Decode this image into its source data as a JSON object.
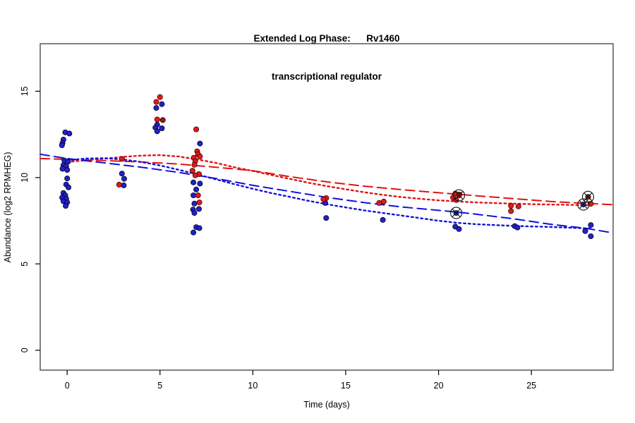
{
  "title": {
    "line1": "Extended Log Phase:      Rv1460",
    "line2": "transcriptional regulator"
  },
  "chart_data": {
    "type": "scatter",
    "xlabel": "Time  (days)",
    "ylabel": "Abundance  (log2 RPMHEG)",
    "xlim": [
      -1.45,
      29.4
    ],
    "ylim": [
      -1.15,
      17.75
    ],
    "grid": false,
    "legend": "none",
    "x_axis": {
      "ticks": [
        0,
        5,
        10,
        15,
        20,
        25
      ]
    },
    "y_axis": {
      "ticks": [
        0,
        5,
        10,
        15
      ]
    },
    "colors": {
      "red_point_fill": "#e31a1a",
      "red_point_stroke": "#3a0000",
      "darkred_point_fill": "#a31212",
      "blue_point_fill": "#2121cc",
      "blue_point_stroke": "#00001a",
      "red_line": "#e41111",
      "blue_line": "#1111dd",
      "box": "#4d4d4d",
      "highlight_ring": "#111111"
    },
    "series": [
      {
        "name": "blue-points",
        "fill": "#2121cc",
        "stroke": "#00001a",
        "points": [
          [
            -0.1,
            12.62
          ],
          [
            0.12,
            12.55
          ],
          [
            -0.2,
            12.2
          ],
          [
            -0.25,
            12.0
          ],
          [
            -0.28,
            11.87
          ],
          [
            -0.15,
            10.99
          ],
          [
            0.05,
            10.92
          ],
          [
            -0.2,
            10.72
          ],
          [
            -0.05,
            10.65
          ],
          [
            -0.25,
            10.51
          ],
          [
            0.0,
            10.44
          ],
          [
            0.0,
            9.95
          ],
          [
            -0.05,
            9.6
          ],
          [
            0.07,
            9.43
          ],
          [
            -0.2,
            9.11
          ],
          [
            -0.1,
            8.97
          ],
          [
            -0.27,
            8.84
          ],
          [
            -0.05,
            8.77
          ],
          [
            -0.2,
            8.63
          ],
          [
            0.0,
            8.56
          ],
          [
            -0.08,
            8.36
          ],
          [
            2.95,
            10.23
          ],
          [
            3.07,
            9.93
          ],
          [
            3.05,
            9.55
          ],
          [
            5.1,
            14.25
          ],
          [
            4.8,
            14.03
          ],
          [
            4.85,
            13.06
          ],
          [
            4.75,
            12.89
          ],
          [
            5.1,
            12.85
          ],
          [
            4.85,
            12.68
          ],
          [
            7.15,
            11.97
          ],
          [
            6.8,
            9.72
          ],
          [
            7.15,
            9.65
          ],
          [
            6.95,
            9.31
          ],
          [
            6.8,
            8.97
          ],
          [
            6.85,
            8.49
          ],
          [
            7.1,
            8.18
          ],
          [
            6.78,
            8.15
          ],
          [
            6.85,
            7.95
          ],
          [
            6.95,
            7.13
          ],
          [
            7.12,
            7.07
          ],
          [
            6.8,
            6.82
          ],
          [
            13.9,
            8.53
          ],
          [
            13.95,
            7.66
          ],
          [
            17.0,
            7.55
          ],
          [
            20.9,
            7.16
          ],
          [
            21.1,
            7.02
          ],
          [
            24.1,
            7.19
          ],
          [
            24.25,
            7.11
          ],
          [
            28.2,
            7.25
          ],
          [
            27.9,
            6.9
          ],
          [
            28.2,
            6.6
          ]
        ]
      },
      {
        "name": "red-points",
        "fill": "#e31a1a",
        "stroke": "#3a0000",
        "points": [
          [
            2.95,
            11.08
          ],
          [
            2.8,
            9.59
          ],
          [
            5.0,
            14.66
          ],
          [
            4.8,
            14.38
          ],
          [
            4.85,
            13.36
          ],
          [
            6.95,
            12.79
          ],
          [
            7.0,
            11.52
          ],
          [
            7.05,
            11.35
          ],
          [
            7.15,
            11.22
          ],
          [
            6.82,
            11.15
          ],
          [
            6.9,
            10.95
          ],
          [
            6.85,
            10.74
          ],
          [
            6.75,
            10.4
          ],
          [
            7.1,
            10.2
          ],
          [
            6.9,
            10.13
          ],
          [
            7.05,
            8.97
          ],
          [
            7.12,
            8.56
          ],
          [
            13.95,
            8.81
          ],
          [
            13.8,
            8.75
          ],
          [
            16.8,
            8.53
          ],
          [
            17.05,
            8.61
          ],
          [
            20.9,
            9.07
          ],
          [
            21.12,
            9.02
          ],
          [
            20.78,
            8.84
          ],
          [
            20.95,
            8.7
          ],
          [
            23.9,
            8.37
          ],
          [
            24.3,
            8.33
          ],
          [
            23.9,
            8.06
          ],
          [
            28.2,
            8.48
          ]
        ]
      },
      {
        "name": "darkred-points",
        "fill": "#a31212",
        "stroke": "#2a0000",
        "points": [
          [
            5.15,
            13.33
          ]
        ]
      }
    ],
    "highlighted_points": [
      {
        "day": 21.1,
        "value": 8.97,
        "fill": "#b01515"
      },
      {
        "day": 20.95,
        "value": 7.95,
        "fill": "#2222cc"
      },
      {
        "day": 28.05,
        "value": 8.88,
        "fill": "#8b1a1a"
      },
      {
        "day": 27.8,
        "value": 8.44,
        "fill": "#2a2ab0"
      }
    ],
    "trend_lines": [
      {
        "name": "red-loess-dotted",
        "color": "#e41111",
        "dash": "dotted",
        "points": [
          [
            0,
            10.9
          ],
          [
            1,
            11.0
          ],
          [
            2,
            11.1
          ],
          [
            3,
            11.2
          ],
          [
            4,
            11.27
          ],
          [
            5,
            11.3
          ],
          [
            6,
            11.22
          ],
          [
            7,
            11.05
          ],
          [
            8,
            10.85
          ],
          [
            9,
            10.6
          ],
          [
            10,
            10.38
          ],
          [
            11,
            10.15
          ],
          [
            12,
            9.92
          ],
          [
            13,
            9.7
          ],
          [
            14,
            9.5
          ],
          [
            15,
            9.32
          ],
          [
            16,
            9.15
          ],
          [
            17,
            9.0
          ],
          [
            18,
            8.87
          ],
          [
            19,
            8.77
          ],
          [
            20,
            8.68
          ],
          [
            21,
            8.62
          ],
          [
            22,
            8.56
          ],
          [
            23,
            8.52
          ],
          [
            24,
            8.49
          ],
          [
            25,
            8.46
          ],
          [
            26,
            8.44
          ],
          [
            27,
            8.42
          ],
          [
            28.2,
            8.4
          ]
        ]
      },
      {
        "name": "red-linear-longdash",
        "color": "#e41111",
        "dash": "longdash",
        "points": [
          [
            -1.45,
            11.1
          ],
          [
            0,
            11.05
          ],
          [
            2,
            10.98
          ],
          [
            4,
            10.9
          ],
          [
            6,
            10.78
          ],
          [
            8,
            10.6
          ],
          [
            10,
            10.4
          ],
          [
            12,
            10.05
          ],
          [
            14,
            9.75
          ],
          [
            16,
            9.5
          ],
          [
            18,
            9.3
          ],
          [
            20,
            9.12
          ],
          [
            22,
            8.95
          ],
          [
            24,
            8.78
          ],
          [
            26,
            8.62
          ],
          [
            28,
            8.5
          ],
          [
            29.35,
            8.43
          ]
        ]
      },
      {
        "name": "blue-loess-dotted",
        "color": "#1111dd",
        "dash": "dotted",
        "points": [
          [
            0,
            11.0
          ],
          [
            1,
            11.1
          ],
          [
            2,
            11.12
          ],
          [
            3,
            11.05
          ],
          [
            4,
            10.9
          ],
          [
            5,
            10.7
          ],
          [
            6,
            10.45
          ],
          [
            7,
            10.18
          ],
          [
            8,
            9.9
          ],
          [
            9,
            9.62
          ],
          [
            10,
            9.35
          ],
          [
            11,
            9.1
          ],
          [
            12,
            8.88
          ],
          [
            13,
            8.65
          ],
          [
            14,
            8.45
          ],
          [
            15,
            8.27
          ],
          [
            16,
            8.1
          ],
          [
            17,
            7.95
          ],
          [
            18,
            7.8
          ],
          [
            19,
            7.65
          ],
          [
            20,
            7.5
          ],
          [
            21,
            7.38
          ],
          [
            22,
            7.3
          ],
          [
            23,
            7.25
          ],
          [
            24,
            7.2
          ],
          [
            25,
            7.17
          ],
          [
            26,
            7.14
          ],
          [
            27,
            7.1
          ],
          [
            28.2,
            7.05
          ]
        ]
      },
      {
        "name": "blue-linear-longdash",
        "color": "#1111dd",
        "dash": "longdash",
        "points": [
          [
            -1.45,
            11.35
          ],
          [
            0,
            11.1
          ],
          [
            2,
            10.85
          ],
          [
            4,
            10.6
          ],
          [
            6,
            10.3
          ],
          [
            8,
            9.95
          ],
          [
            10,
            9.55
          ],
          [
            12,
            9.2
          ],
          [
            14,
            8.85
          ],
          [
            16,
            8.55
          ],
          [
            18,
            8.3
          ],
          [
            20,
            8.1
          ],
          [
            21,
            8.0
          ],
          [
            22,
            7.88
          ],
          [
            24,
            7.62
          ],
          [
            26,
            7.3
          ],
          [
            28,
            7.05
          ],
          [
            29.35,
            6.8
          ]
        ]
      }
    ]
  }
}
